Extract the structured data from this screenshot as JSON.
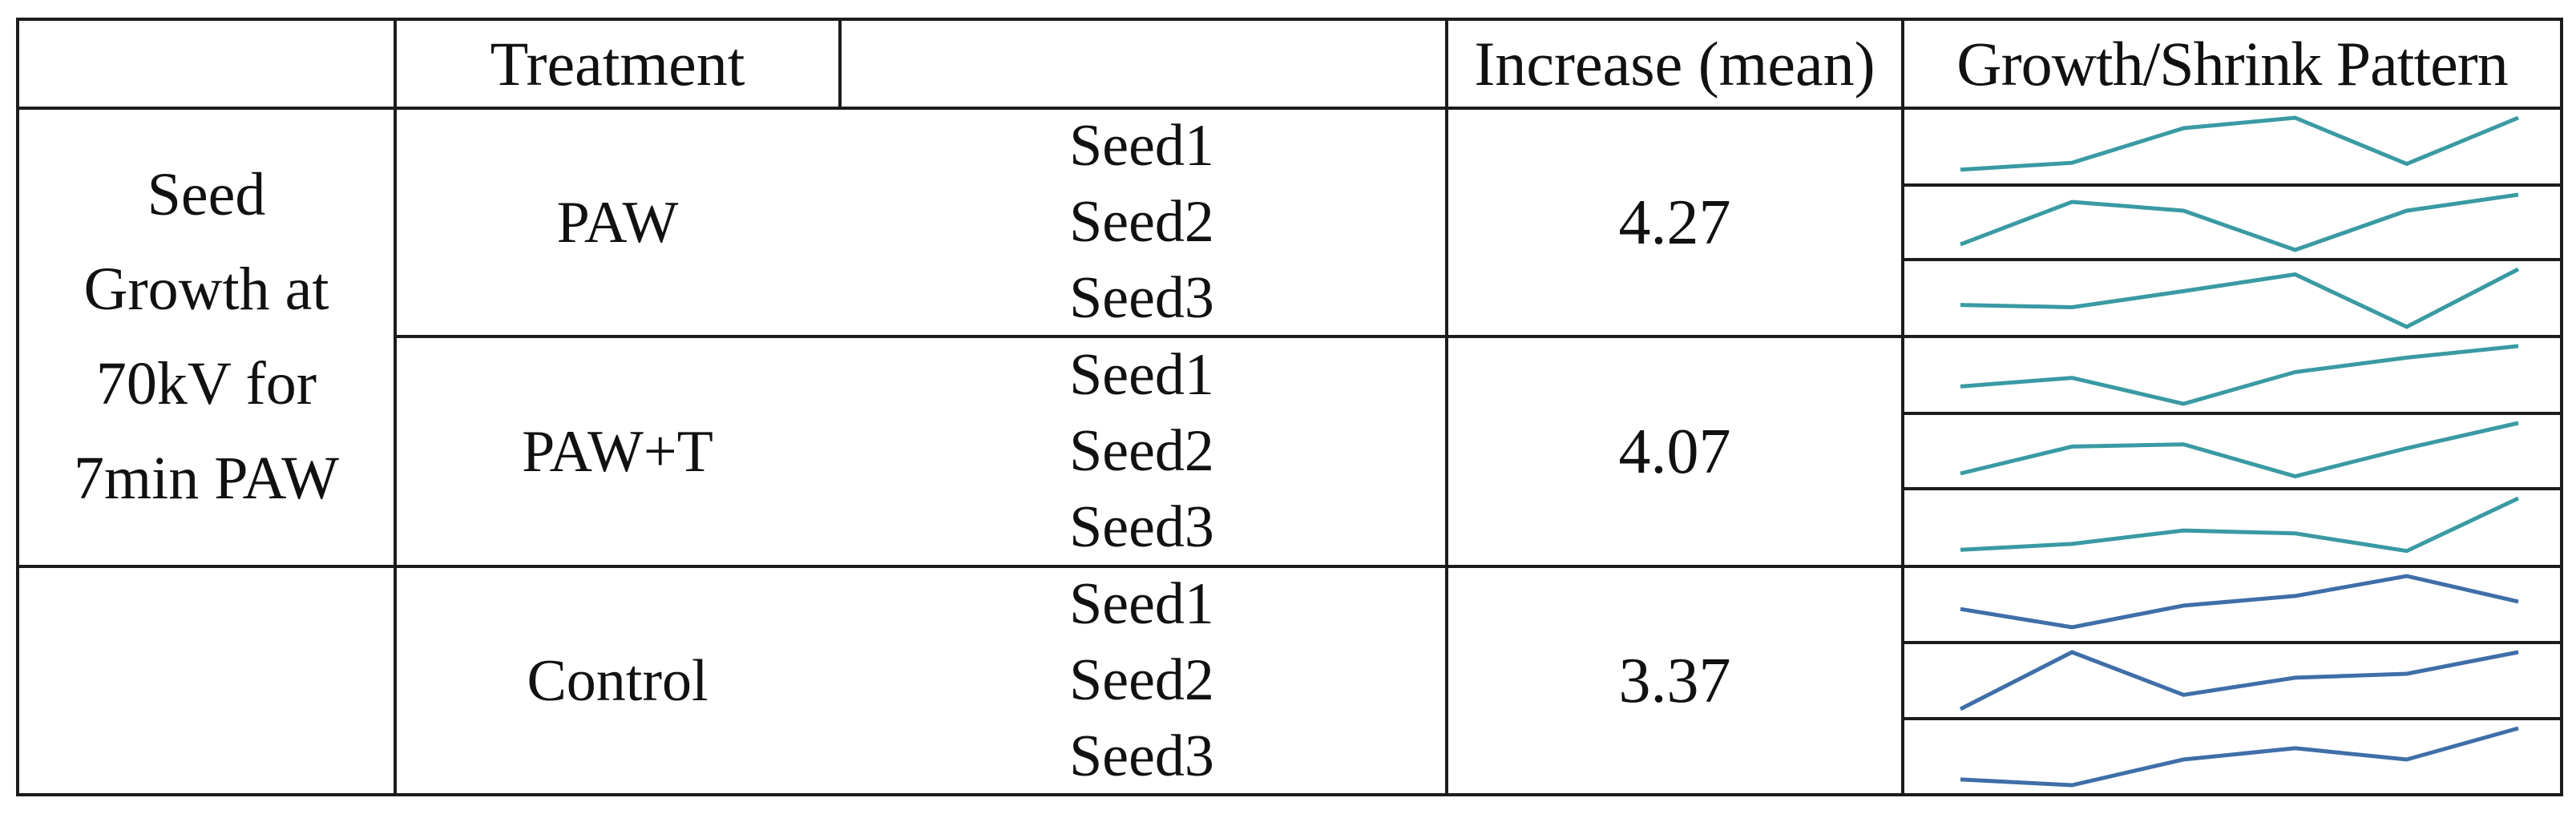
{
  "table": {
    "headers": {
      "treatment": "Treatment",
      "blank": "",
      "increase": "Increase (mean)",
      "pattern": "Growth/Shrink Pattern"
    },
    "group_label_lines": [
      "Seed",
      "Growth at",
      "70kV for",
      "7min PAW"
    ],
    "rows": [
      {
        "treatment": "PAW",
        "mean": "4.27",
        "seeds": [
          "Seed1",
          "Seed2",
          "Seed3"
        ],
        "sparklines": [
          [
            0.1,
            0.22,
            0.82,
            1.0,
            0.2,
            1.0
          ],
          [
            0.1,
            0.87,
            0.71,
            0.0,
            0.71,
            1.0
          ],
          [
            0.38,
            0.34,
            0.62,
            0.91,
            0.0,
            1.0
          ]
        ],
        "sparkline_color": "#3a9aa3"
      },
      {
        "treatment": "PAW+T",
        "mean": "4.07",
        "seeds": [
          "Seed1",
          "Seed2",
          "Seed3"
        ],
        "sparklines": [
          [
            0.3,
            0.45,
            0.0,
            0.55,
            0.8,
            1.0
          ],
          [
            0.1,
            0.58,
            0.62,
            0.05,
            0.55,
            1.0
          ],
          [
            0.12,
            0.22,
            0.45,
            0.4,
            0.1,
            1.0
          ]
        ],
        "sparkline_color": "#3a9aa3"
      },
      {
        "treatment": "Control",
        "mean": "3.37",
        "seeds": [
          "Seed1",
          "Seed2",
          "Seed3"
        ],
        "sparklines": [
          [
            0.42,
            0.1,
            0.48,
            0.65,
            1.0,
            0.55
          ],
          [
            0.0,
            1.0,
            0.25,
            0.55,
            0.62,
            1.0
          ],
          [
            0.1,
            0.0,
            0.45,
            0.65,
            0.45,
            1.0
          ]
        ],
        "sparkline_color": "#3f6ea8"
      }
    ]
  }
}
